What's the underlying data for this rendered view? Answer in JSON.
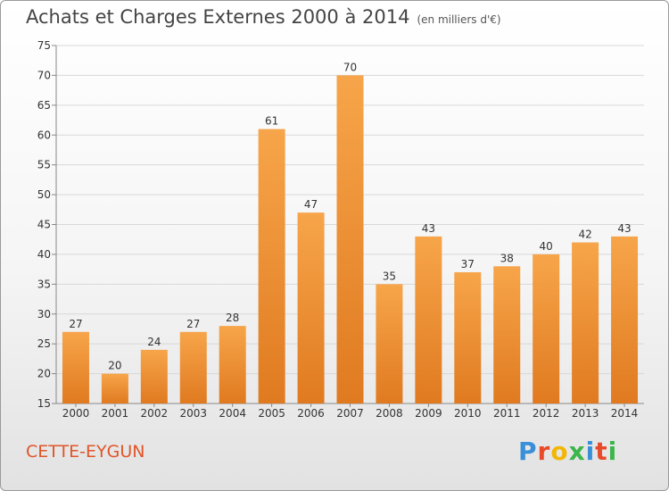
{
  "chart_data": {
    "type": "bar",
    "title": "Achats et Charges Externes 2000 à 2014",
    "subtitle": "(en milliers d'€)",
    "categories": [
      "2000",
      "2001",
      "2002",
      "2003",
      "2004",
      "2005",
      "2006",
      "2007",
      "2008",
      "2009",
      "2010",
      "2011",
      "2012",
      "2013",
      "2014"
    ],
    "values": [
      27,
      20,
      24,
      27,
      28,
      61,
      47,
      70,
      35,
      43,
      37,
      38,
      40,
      42,
      43
    ],
    "ylim": [
      15,
      75
    ],
    "yticks": [
      15,
      20,
      25,
      30,
      35,
      40,
      45,
      50,
      55,
      60,
      65,
      70,
      75
    ],
    "grid": true,
    "bar_color_top": "#f7a54a",
    "bar_color_bottom": "#e07a20"
  },
  "footer": {
    "commune": "CETTE-EYGUN",
    "logo_letters": [
      "P",
      "r",
      "o",
      "x",
      "i",
      "t",
      "i"
    ],
    "logo_colors": [
      "#3a8fd9",
      "#e84a2a",
      "#f2b705",
      "#3cb54a",
      "#3a8fd9",
      "#e84a2a",
      "#3cb54a"
    ]
  }
}
